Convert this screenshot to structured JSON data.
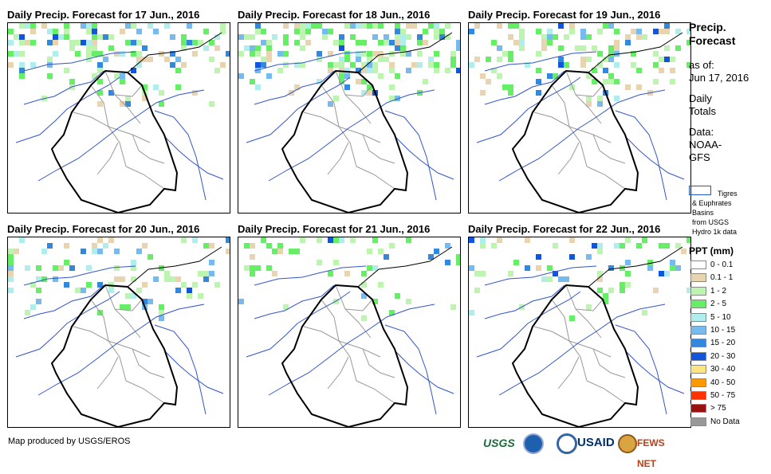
{
  "panels": [
    {
      "title": "Daily Precip. Forecast for 17 Jun., 2016"
    },
    {
      "title": "Daily Precip. Forecast for 18 Jun., 2016"
    },
    {
      "title": "Daily Precip. Forecast for 19 Jun., 2016"
    },
    {
      "title": "Daily Precip. Forecast for 20 Jun., 2016"
    },
    {
      "title": "Daily Precip. Forecast for 21 Jun., 2016"
    },
    {
      "title": "Daily Precip. Forecast for 22 Jun., 2016"
    }
  ],
  "legend": {
    "heading_1": "Precip.",
    "heading_2": "Forecast",
    "asof_1": "as of:",
    "asof_2": "Jun 17, 2016",
    "daily_1": "Daily",
    "daily_2": "Totals",
    "data_1": "Data:",
    "data_2": "NOAA-",
    "data_3": "GFS",
    "basin_1": "Tigres",
    "basin_2": "& Euphrates",
    "basin_3": "Basins",
    "basin_4": "from USGS",
    "basin_5": "Hydro 1k data",
    "ppt_title": "PPT (mm)",
    "classes": [
      {
        "label": "0 - 0.1",
        "color": "#ffffff"
      },
      {
        "label": "0.1 - 1",
        "color": "#e8d4b0"
      },
      {
        "label": "1 - 2",
        "color": "#bdf5b0"
      },
      {
        "label": "2 - 5",
        "color": "#66ee66"
      },
      {
        "label": "5 - 10",
        "color": "#b0eeee"
      },
      {
        "label": "10 - 15",
        "color": "#77bbee"
      },
      {
        "label": "15 - 20",
        "color": "#3388dd"
      },
      {
        "label": "20 - 30",
        "color": "#1155dd"
      },
      {
        "label": "30 - 40",
        "color": "#ffe680"
      },
      {
        "label": "40 - 50",
        "color": "#ff9900"
      },
      {
        "label": "50 - 75",
        "color": "#ff3300"
      },
      {
        "label": "> 75",
        "color": "#991111"
      },
      {
        "label": "No Data",
        "color": "#999999"
      }
    ]
  },
  "footer": {
    "credit": "Map produced by USGS/EROS",
    "logo_usgs": "USGS",
    "logo_usaid": "USAID",
    "logo_fews": "FEWS NET"
  }
}
